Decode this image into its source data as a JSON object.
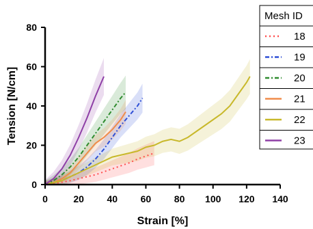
{
  "chart_data": {
    "type": "line",
    "xlabel": "Strain [%]",
    "ylabel": "Tension [N/cm]",
    "xlim": [
      0,
      140
    ],
    "ylim": [
      0,
      80
    ],
    "xticks": [
      "0",
      "20",
      "40",
      "60",
      "80",
      "100",
      "120",
      "140"
    ],
    "yticks": [
      "0",
      "20",
      "40",
      "60",
      "80"
    ],
    "legend_title": "Mesh ID",
    "legend_position": "right",
    "grid": false,
    "series": [
      {
        "name": "18",
        "color": "#ff4d4d",
        "dash": "dotted",
        "band": 5,
        "x": [
          0,
          5,
          10,
          15,
          20,
          25,
          30,
          35,
          40,
          45,
          50,
          55,
          60,
          65
        ],
        "y": [
          0,
          0.5,
          1.2,
          2,
          3,
          4,
          5,
          6.5,
          8,
          9.5,
          11,
          13,
          14.5,
          16
        ]
      },
      {
        "name": "19",
        "color": "#2e4fd6",
        "dash": "dashdot",
        "band": 6,
        "x": [
          0,
          5,
          10,
          15,
          20,
          25,
          30,
          35,
          40,
          45,
          50,
          55,
          58
        ],
        "y": [
          0,
          1,
          2,
          4,
          6,
          9,
          13,
          18,
          24,
          30,
          35,
          40,
          44
        ]
      },
      {
        "name": "20",
        "color": "#2e8b2e",
        "dash": "dashdot",
        "band": 7,
        "x": [
          0,
          5,
          10,
          15,
          20,
          25,
          30,
          35,
          40,
          45,
          48
        ],
        "y": [
          0,
          2,
          5,
          9,
          14,
          20,
          26,
          32,
          38,
          44,
          47
        ]
      },
      {
        "name": "21",
        "color": "#f08c4a",
        "dash": "solid",
        "band": 5,
        "x": [
          0,
          5,
          10,
          15,
          20,
          25,
          30,
          35,
          40,
          45,
          48
        ],
        "y": [
          0,
          1,
          3,
          6,
          11,
          16,
          21,
          24,
          28,
          33,
          37
        ]
      },
      {
        "name": "22",
        "color": "#c8b82a",
        "dash": "solid",
        "band": 7,
        "x": [
          0,
          5,
          10,
          15,
          20,
          25,
          30,
          35,
          40,
          45,
          50,
          55,
          60,
          65,
          70,
          75,
          80,
          85,
          90,
          95,
          100,
          105,
          110,
          115,
          120,
          122
        ],
        "y": [
          0,
          1,
          2,
          4,
          6,
          8,
          10,
          12,
          14,
          15,
          16,
          17,
          19,
          20,
          22,
          23,
          22,
          24,
          27,
          30,
          33,
          36,
          40,
          46,
          52,
          55
        ]
      },
      {
        "name": "23",
        "color": "#8e3fa6",
        "dash": "solid",
        "band": 8,
        "x": [
          0,
          5,
          10,
          15,
          20,
          25,
          30,
          35
        ],
        "y": [
          0,
          3,
          8,
          15,
          24,
          34,
          45,
          55
        ]
      }
    ]
  }
}
